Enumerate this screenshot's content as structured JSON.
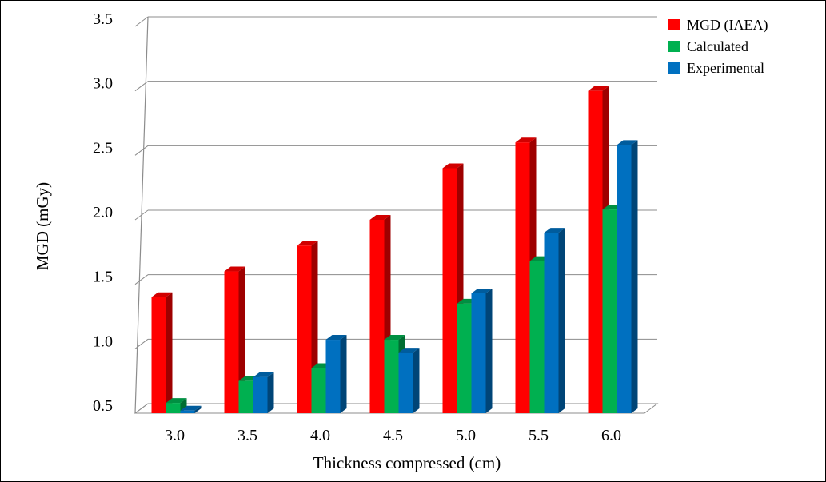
{
  "chart_data": {
    "type": "bar",
    "title": "",
    "xlabel": "Thickness compressed (cm)",
    "ylabel": "MGD (mGy)",
    "categories": [
      "3.0",
      "3.5",
      "4.0",
      "4.5",
      "5.0",
      "5.5",
      "6.0"
    ],
    "ylim": [
      0.5,
      3.5
    ],
    "yticks": [
      "0.5",
      "1.0",
      "1.5",
      "2.0",
      "2.5",
      "3.0",
      "3.5"
    ],
    "ytick_values": [
      0.5,
      1.0,
      1.5,
      2.0,
      2.5,
      3.0,
      3.5
    ],
    "grid": true,
    "legend_position": "top-right",
    "style": "3d-clustered-columns",
    "series": [
      {
        "name": "MGD (IAEA)",
        "color": "#ff0000",
        "values": [
          1.4,
          1.6,
          1.8,
          2.0,
          2.4,
          2.6,
          3.0
        ]
      },
      {
        "name": "Calculated",
        "color": "#00b050",
        "values": [
          0.58,
          0.75,
          0.85,
          1.07,
          1.35,
          1.68,
          2.08
        ]
      },
      {
        "name": "Experimental",
        "color": "#0070c0",
        "values": [
          0.52,
          0.78,
          1.07,
          0.97,
          1.43,
          1.9,
          2.58
        ]
      }
    ]
  }
}
